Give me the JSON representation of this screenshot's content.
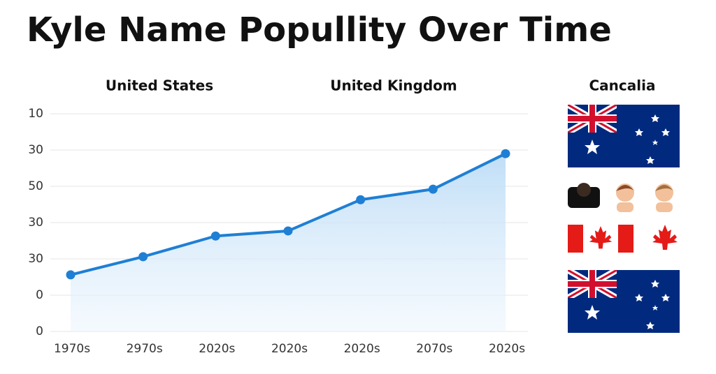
{
  "chart_data": {
    "type": "line",
    "title": "Kyle Name Popullity Over Time",
    "subtitles": [
      "United States",
      "United Kingdom",
      "Cancalia"
    ],
    "categories": [
      "1970s",
      "2970s",
      "2020s",
      "2020s",
      "2020s",
      "2070s",
      "2020s"
    ],
    "values": [
      1.56,
      2.06,
      2.63,
      2.77,
      3.63,
      3.92,
      4.9
    ],
    "color": "#1f7fd4",
    "ylim": [
      0,
      6
    ],
    "yticks": [
      {
        "value": 0,
        "label": "0"
      },
      {
        "value": 1,
        "label": "0"
      },
      {
        "value": 2,
        "label": "30"
      },
      {
        "value": 3,
        "label": "30"
      },
      {
        "value": 4,
        "label": "50"
      },
      {
        "value": 5,
        "label": "30"
      },
      {
        "value": 6,
        "label": "10"
      }
    ],
    "grid": true
  }
}
